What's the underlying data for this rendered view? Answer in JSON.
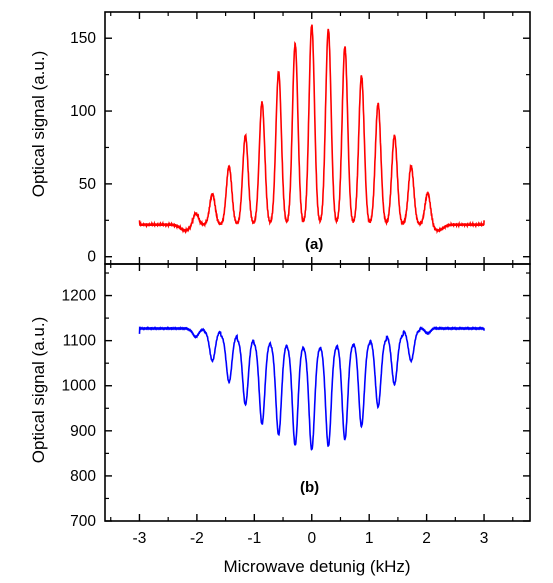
{
  "chart_data": [
    {
      "panel": "(a)",
      "type": "line",
      "ylabel": "Optical signal (a.u.)",
      "xlabel": "",
      "xlim": [
        -3.6,
        3.8
      ],
      "ylim": [
        -5,
        168
      ],
      "yticks": [
        0,
        50,
        100,
        150
      ],
      "xticks": [
        -3,
        -2,
        -1,
        0,
        1,
        2,
        3
      ],
      "grid": false,
      "series": [
        {
          "color": "#ff0000",
          "model": {
            "kind": "fringe-peaks",
            "x_range": [
              -3.0,
              3.0
            ],
            "baseline": 22,
            "fringe_period_khz": 0.289,
            "peak_centers_khz": [
              -2.02,
              -1.73,
              -1.44,
              -1.155,
              -0.866,
              -0.577,
              -0.289,
              0.0,
              0.289,
              0.577,
              0.866,
              1.155,
              1.44,
              1.73,
              2.02
            ],
            "peak_heights": [
              30,
              43,
              62,
              83,
              106,
              127,
              146,
              159,
              156,
              144,
              124,
              105,
              83,
              62,
              44
            ],
            "endpoints": [
              25,
              25
            ]
          }
        }
      ]
    },
    {
      "panel": "(b)",
      "type": "line",
      "ylabel": "Optical signal (a.u.)",
      "xlabel": "Microwave detunig (kHz)",
      "xlim": [
        -3.6,
        3.8
      ],
      "ylim": [
        700,
        1270
      ],
      "yticks": [
        700,
        800,
        900,
        1000,
        1100,
        1200
      ],
      "xticks": [
        -3,
        -2,
        -1,
        0,
        1,
        2,
        3
      ],
      "grid": false,
      "series": [
        {
          "color": "#0000ff",
          "model": {
            "kind": "fringe-dips",
            "x_range": [
              -3.0,
              3.0
            ],
            "baseline": 1127,
            "fringe_period_khz": 0.289,
            "upper_envelope": [
              1125,
              1120,
              1110,
              1100,
              1092,
              1088,
              1083,
              1080,
              1083,
              1088,
              1092,
              1100,
              1110,
              1122,
              1128
            ],
            "dip_centers_khz": [
              -2.02,
              -1.73,
              -1.44,
              -1.155,
              -0.866,
              -0.577,
              -0.289,
              0.0,
              0.289,
              0.577,
              0.866,
              1.155,
              1.44,
              1.73,
              2.02
            ],
            "dip_minima": [
              1110,
              1062,
              1025,
              985,
              950,
              930,
              912,
              905,
              910,
              920,
              945,
              980,
              1020,
              1060,
              1115
            ],
            "endpoints": [
              1115,
              1122
            ]
          }
        }
      ]
    }
  ],
  "labels": {
    "panel_a_tag": "(a)",
    "panel_b_tag": "(b)",
    "ylabel_a": "Optical signal (a.u.)",
    "ylabel_b": "Optical signal (a.u.)",
    "xlabel": "Microwave detunig (kHz)"
  }
}
